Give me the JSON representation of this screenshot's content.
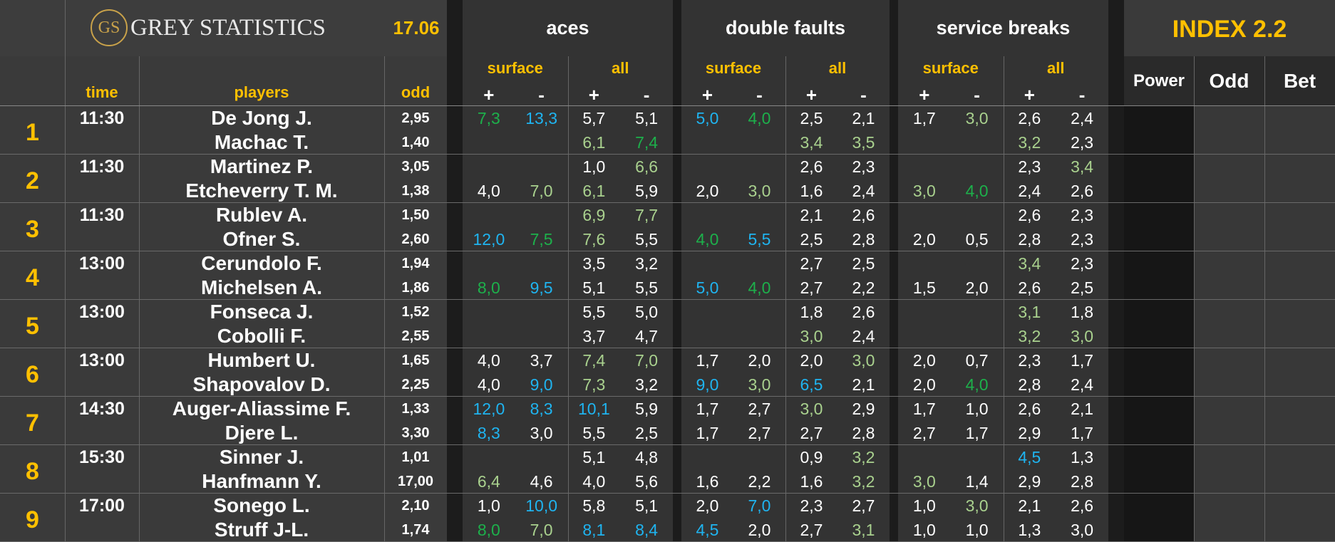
{
  "header": {
    "logo": "GS",
    "brand": "GREY STATISTICS",
    "date": "17.06",
    "index": "INDEX 2.2"
  },
  "groups": [
    {
      "title": "aces",
      "sub": [
        "surface",
        "all"
      ]
    },
    {
      "title": "double faults",
      "sub": [
        "surface",
        "all"
      ]
    },
    {
      "title": "service breaks",
      "sub": [
        "surface",
        "all"
      ]
    }
  ],
  "signs": [
    "+",
    "-"
  ],
  "columns": {
    "time": "time",
    "players": "players",
    "odd": "odd",
    "power": "Power",
    "odd_index": "Odd",
    "bet": "Bet"
  },
  "palette": {
    "w": "#ffffff",
    "g": "#1db04b",
    "lg": "#a9d18e",
    "b": "#1fb4f0"
  },
  "matches": [
    {
      "number": 1,
      "time": "11:30",
      "players": [
        {
          "name": "De Jong J.",
          "odd": "2,95",
          "stats": [
            "7,3",
            "13,3",
            "5,7",
            "5,1",
            "5,0",
            "4,0",
            "2,5",
            "2,1",
            "1,7",
            "3,0",
            "2,6",
            "2,4"
          ],
          "colors": [
            "g",
            "b",
            "w",
            "w",
            "b",
            "g",
            "w",
            "w",
            "w",
            "lg",
            "w",
            "w"
          ]
        },
        {
          "name": "Machac T.",
          "odd": "1,40",
          "stats": [
            null,
            null,
            "6,1",
            "7,4",
            null,
            null,
            "3,4",
            "3,5",
            null,
            null,
            "3,2",
            "2,3"
          ],
          "colors": [
            null,
            null,
            "lg",
            "g",
            null,
            null,
            "lg",
            "lg",
            null,
            null,
            "lg",
            "w"
          ]
        }
      ]
    },
    {
      "number": 2,
      "time": "11:30",
      "players": [
        {
          "name": "Martinez P.",
          "odd": "3,05",
          "stats": [
            null,
            null,
            "1,0",
            "6,6",
            null,
            null,
            "2,6",
            "2,3",
            null,
            null,
            "2,3",
            "3,4"
          ],
          "colors": [
            null,
            null,
            "w",
            "lg",
            null,
            null,
            "w",
            "w",
            null,
            null,
            "w",
            "lg"
          ]
        },
        {
          "name": "Etcheverry T. M.",
          "odd": "1,38",
          "stats": [
            "4,0",
            "7,0",
            "6,1",
            "5,9",
            "2,0",
            "3,0",
            "1,6",
            "2,4",
            "3,0",
            "4,0",
            "2,4",
            "2,6"
          ],
          "colors": [
            "w",
            "lg",
            "lg",
            "w",
            "w",
            "lg",
            "w",
            "w",
            "lg",
            "g",
            "w",
            "w"
          ]
        }
      ]
    },
    {
      "number": 3,
      "time": "11:30",
      "players": [
        {
          "name": "Rublev A.",
          "odd": "1,50",
          "stats": [
            null,
            null,
            "6,9",
            "7,7",
            null,
            null,
            "2,1",
            "2,6",
            null,
            null,
            "2,6",
            "2,3"
          ],
          "colors": [
            null,
            null,
            "lg",
            "lg",
            null,
            null,
            "w",
            "w",
            null,
            null,
            "w",
            "w"
          ]
        },
        {
          "name": "Ofner S.",
          "odd": "2,60",
          "stats": [
            "12,0",
            "7,5",
            "7,6",
            "5,5",
            "4,0",
            "5,5",
            "2,5",
            "2,8",
            "2,0",
            "0,5",
            "2,8",
            "2,3"
          ],
          "colors": [
            "b",
            "g",
            "lg",
            "w",
            "g",
            "b",
            "w",
            "w",
            "w",
            "w",
            "w",
            "w"
          ]
        }
      ]
    },
    {
      "number": 4,
      "time": "13:00",
      "players": [
        {
          "name": "Cerundolo F.",
          "odd": "1,94",
          "stats": [
            null,
            null,
            "3,5",
            "3,2",
            null,
            null,
            "2,7",
            "2,5",
            null,
            null,
            "3,4",
            "2,3"
          ],
          "colors": [
            null,
            null,
            "w",
            "w",
            null,
            null,
            "w",
            "w",
            null,
            null,
            "lg",
            "w"
          ]
        },
        {
          "name": "Michelsen A.",
          "odd": "1,86",
          "stats": [
            "8,0",
            "9,5",
            "5,1",
            "5,5",
            "5,0",
            "4,0",
            "2,7",
            "2,2",
            "1,5",
            "2,0",
            "2,6",
            "2,5"
          ],
          "colors": [
            "g",
            "b",
            "w",
            "w",
            "b",
            "g",
            "w",
            "w",
            "w",
            "w",
            "w",
            "w"
          ]
        }
      ]
    },
    {
      "number": 5,
      "time": "13:00",
      "players": [
        {
          "name": "Fonseca J.",
          "odd": "1,52",
          "stats": [
            null,
            null,
            "5,5",
            "5,0",
            null,
            null,
            "1,8",
            "2,6",
            null,
            null,
            "3,1",
            "1,8"
          ],
          "colors": [
            null,
            null,
            "w",
            "w",
            null,
            null,
            "w",
            "w",
            null,
            null,
            "lg",
            "w"
          ]
        },
        {
          "name": "Cobolli F.",
          "odd": "2,55",
          "stats": [
            null,
            null,
            "3,7",
            "4,7",
            null,
            null,
            "3,0",
            "2,4",
            null,
            null,
            "3,2",
            "3,0"
          ],
          "colors": [
            null,
            null,
            "w",
            "w",
            null,
            null,
            "lg",
            "w",
            null,
            null,
            "lg",
            "lg"
          ]
        }
      ]
    },
    {
      "number": 6,
      "time": "13:00",
      "players": [
        {
          "name": "Humbert U.",
          "odd": "1,65",
          "stats": [
            "4,0",
            "3,7",
            "7,4",
            "7,0",
            "1,7",
            "2,0",
            "2,0",
            "3,0",
            "2,0",
            "0,7",
            "2,3",
            "1,7"
          ],
          "colors": [
            "w",
            "w",
            "lg",
            "lg",
            "w",
            "w",
            "w",
            "lg",
            "w",
            "w",
            "w",
            "w"
          ]
        },
        {
          "name": "Shapovalov D.",
          "odd": "2,25",
          "stats": [
            "4,0",
            "9,0",
            "7,3",
            "3,2",
            "9,0",
            "3,0",
            "6,5",
            "2,1",
            "2,0",
            "4,0",
            "2,8",
            "2,4"
          ],
          "colors": [
            "w",
            "b",
            "lg",
            "w",
            "b",
            "lg",
            "b",
            "w",
            "w",
            "g",
            "w",
            "w"
          ]
        }
      ]
    },
    {
      "number": 7,
      "time": "14:30",
      "players": [
        {
          "name": "Auger-Aliassime F.",
          "odd": "1,33",
          "stats": [
            "12,0",
            "8,3",
            "10,1",
            "5,9",
            "1,7",
            "2,7",
            "3,0",
            "2,9",
            "1,7",
            "1,0",
            "2,6",
            "2,1"
          ],
          "colors": [
            "b",
            "b",
            "b",
            "w",
            "w",
            "w",
            "lg",
            "w",
            "w",
            "w",
            "w",
            "w"
          ]
        },
        {
          "name": "Djere L.",
          "odd": "3,30",
          "stats": [
            "8,3",
            "3,0",
            "5,5",
            "2,5",
            "1,7",
            "2,7",
            "2,7",
            "2,8",
            "2,7",
            "1,7",
            "2,9",
            "1,7"
          ],
          "colors": [
            "b",
            "w",
            "w",
            "w",
            "w",
            "w",
            "w",
            "w",
            "w",
            "w",
            "w",
            "w"
          ]
        }
      ]
    },
    {
      "number": 8,
      "time": "15:30",
      "players": [
        {
          "name": "Sinner J.",
          "odd": "1,01",
          "stats": [
            null,
            null,
            "5,1",
            "4,8",
            null,
            null,
            "0,9",
            "3,2",
            null,
            null,
            "4,5",
            "1,3"
          ],
          "colors": [
            null,
            null,
            "w",
            "w",
            null,
            null,
            "w",
            "lg",
            null,
            null,
            "b",
            "w"
          ]
        },
        {
          "name": "Hanfmann Y.",
          "odd": "17,00",
          "stats": [
            "6,4",
            "4,6",
            "4,0",
            "5,6",
            "1,6",
            "2,2",
            "1,6",
            "3,2",
            "3,0",
            "1,4",
            "2,9",
            "2,8"
          ],
          "colors": [
            "lg",
            "w",
            "w",
            "w",
            "w",
            "w",
            "w",
            "lg",
            "lg",
            "w",
            "w",
            "w"
          ]
        }
      ]
    },
    {
      "number": 9,
      "time": "17:00",
      "players": [
        {
          "name": "Sonego L.",
          "odd": "2,10",
          "stats": [
            "1,0",
            "10,0",
            "5,8",
            "5,1",
            "2,0",
            "7,0",
            "2,3",
            "2,7",
            "1,0",
            "3,0",
            "2,1",
            "2,6"
          ],
          "colors": [
            "w",
            "b",
            "w",
            "w",
            "w",
            "b",
            "w",
            "w",
            "w",
            "lg",
            "w",
            "w"
          ]
        },
        {
          "name": "Struff J-L.",
          "odd": "1,74",
          "stats": [
            "8,0",
            "7,0",
            "8,1",
            "8,4",
            "4,5",
            "2,0",
            "2,7",
            "3,1",
            "1,0",
            "1,0",
            "1,3",
            "3,0"
          ],
          "colors": [
            "g",
            "lg",
            "b",
            "b",
            "b",
            "w",
            "w",
            "lg",
            "w",
            "w",
            "w",
            "w"
          ]
        }
      ]
    }
  ]
}
